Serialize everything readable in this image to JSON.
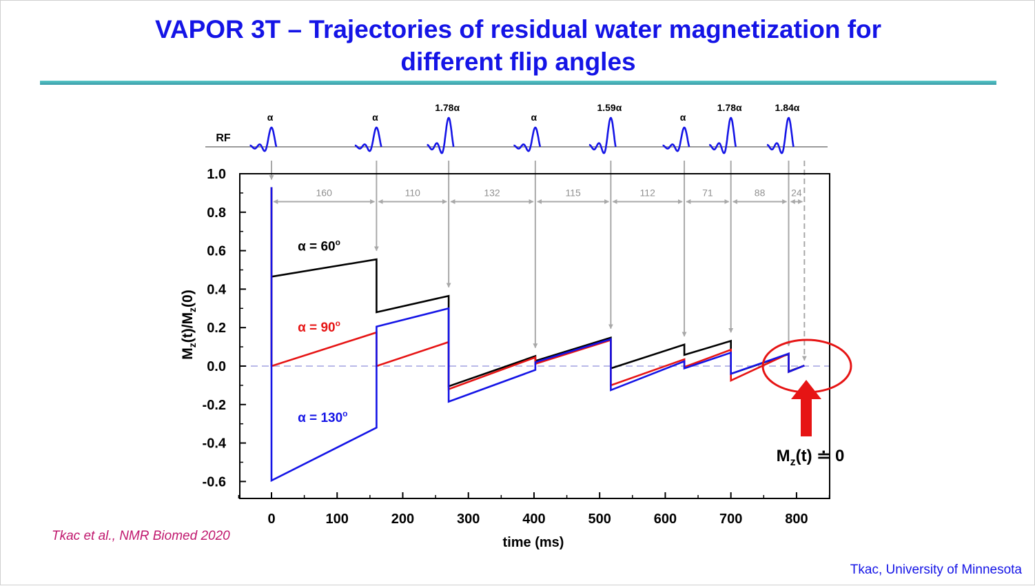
{
  "title": {
    "line1": "VAPOR 3T – Trajectories of residual water magnetization for",
    "line2": "different flip angles"
  },
  "footer": {
    "citation": "Tkac et al., NMR Biomed 2020",
    "credit": "Tkac, University of Minnesota"
  },
  "colors": {
    "title": "#1414e6",
    "accent_rule": "#4fb8c0",
    "citation": "#c0186e"
  },
  "chart_data": {
    "type": "line",
    "xlabel": "time (ms)",
    "ylabel_main": "M",
    "ylabel_sub1": "z",
    "ylabel_mid": "(t)/M",
    "ylabel_sub2": "z",
    "ylabel_end": "(0)",
    "xlim": [
      -50,
      850
    ],
    "ylim": [
      -0.69,
      1.0
    ],
    "xticks": [
      0,
      100,
      200,
      300,
      400,
      500,
      600,
      700,
      800
    ],
    "yticks": [
      1.0,
      0.8,
      0.6,
      0.4,
      0.2,
      0.0,
      -0.2,
      -0.4,
      -0.6
    ],
    "ytick_labels": [
      "1.0",
      "0.8",
      "0.6",
      "0.4",
      "0.2",
      "0.0",
      "-0.2",
      "-0.4",
      "-0.6"
    ],
    "rf_label": "RF",
    "pulses": [
      {
        "t": 0,
        "label": "α",
        "height": 1.0
      },
      {
        "t": 160,
        "label": "α",
        "height": 1.0
      },
      {
        "t": 270,
        "label": "1.78α",
        "height": 1.5
      },
      {
        "t": 402,
        "label": "α",
        "height": 1.0
      },
      {
        "t": 517,
        "label": "1.59α",
        "height": 1.5
      },
      {
        "t": 629,
        "label": "α",
        "height": 1.0
      },
      {
        "t": 700,
        "label": "1.78α",
        "height": 1.5
      },
      {
        "t": 788,
        "label": "1.84α",
        "height": 1.5
      }
    ],
    "intervals": [
      {
        "from": 0,
        "to": 160,
        "label": "160"
      },
      {
        "from": 160,
        "to": 270,
        "label": "110"
      },
      {
        "from": 270,
        "to": 402,
        "label": "132"
      },
      {
        "from": 402,
        "to": 517,
        "label": "115"
      },
      {
        "from": 517,
        "to": 629,
        "label": "112"
      },
      {
        "from": 629,
        "to": 700,
        "label": "71"
      },
      {
        "from": 700,
        "to": 788,
        "label": "88"
      },
      {
        "from": 788,
        "to": 812,
        "label": "24"
      }
    ],
    "interval_y": 0.855,
    "arrow_tips": [
      {
        "t": 0,
        "y": 0.97
      },
      {
        "t": 160,
        "y": 0.6
      },
      {
        "t": 270,
        "y": 0.41
      },
      {
        "t": 402,
        "y": 0.095
      },
      {
        "t": 517,
        "y": 0.195
      },
      {
        "t": 629,
        "y": 0.155
      },
      {
        "t": 700,
        "y": 0.175
      },
      {
        "t": 788,
        "y": 0.105
      },
      {
        "t": 812,
        "y": 0.03
      }
    ],
    "series": [
      {
        "name": "α = 60°",
        "label_prefix": "α = ",
        "label_value": "60",
        "label_sup": "o",
        "color": "#000000",
        "label_at": [
          40,
          0.6
        ],
        "x": [
          0,
          0,
          0,
          160,
          160,
          270,
          270,
          402,
          402,
          517,
          517,
          629,
          629,
          700,
          700,
          788,
          788,
          812
        ],
        "y": [
          0.0,
          0.93,
          0.465,
          0.555,
          0.28,
          0.365,
          -0.105,
          0.052,
          0.027,
          0.148,
          -0.012,
          0.112,
          0.058,
          0.131,
          -0.04,
          0.062,
          -0.028,
          0.003
        ]
      },
      {
        "name": "α = 90°",
        "label_prefix": "α = ",
        "label_value": "90",
        "label_sup": "o",
        "color": "#e61414",
        "label_at": [
          40,
          0.18
        ],
        "x": [
          0,
          0,
          0,
          160,
          160,
          270,
          270,
          402,
          402,
          517,
          517,
          629,
          629,
          700,
          700,
          788,
          788,
          812
        ],
        "y": [
          0.0,
          0.93,
          0.0,
          0.175,
          0.0,
          0.125,
          -0.12,
          0.045,
          0.012,
          0.135,
          -0.1,
          0.035,
          -0.005,
          0.085,
          -0.075,
          0.065,
          -0.03,
          0.003
        ]
      },
      {
        "name": "α = 130°",
        "label_prefix": "α = ",
        "label_value": "130",
        "label_sup": "o",
        "color": "#1414e6",
        "label_at": [
          40,
          -0.29
        ],
        "x": [
          0,
          0,
          0,
          160,
          160,
          270,
          270,
          402,
          402,
          517,
          517,
          629,
          629,
          700,
          700,
          788,
          788,
          812
        ],
        "y": [
          0.0,
          0.93,
          -0.595,
          -0.32,
          0.205,
          0.3,
          -0.185,
          -0.02,
          0.02,
          0.14,
          -0.125,
          0.025,
          -0.012,
          0.07,
          -0.04,
          0.065,
          -0.03,
          0.003
        ]
      }
    ],
    "annotation_main": "M",
    "annotation_sub": "z",
    "annotation_rest": "(t) ≐ 0",
    "annotation_color": "#e61414"
  }
}
